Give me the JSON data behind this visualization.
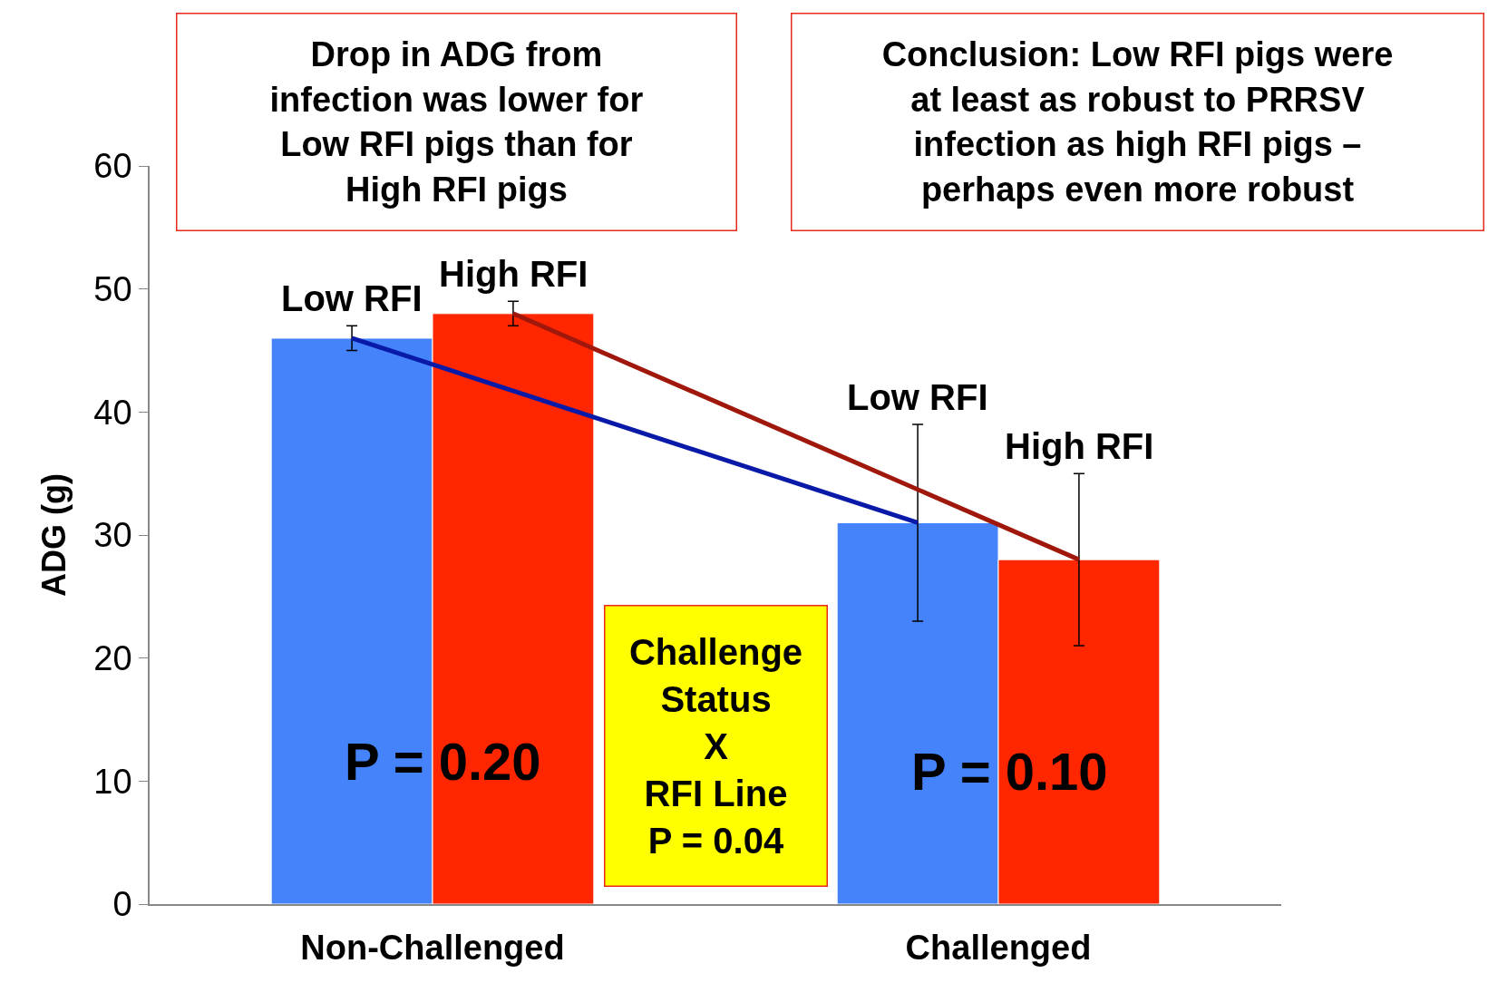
{
  "chart_data": {
    "type": "bar",
    "ylabel": "ADG (g)",
    "categories": [
      "Non-Challenged",
      "Challenged"
    ],
    "series": [
      {
        "name": "Low RFI",
        "color": "#4583fb",
        "values": [
          46,
          31
        ],
        "errors": [
          1,
          8
        ]
      },
      {
        "name": "High RFI",
        "color": "#ff2600",
        "values": [
          48,
          28
        ],
        "errors": [
          1,
          7
        ]
      },
      {
        "type": "line",
        "color": "#0a1aa8",
        "values": [
          46,
          31
        ]
      },
      {
        "type": "line",
        "color": "#a0170c",
        "values": [
          48,
          28
        ]
      }
    ],
    "ylim": [
      0,
      60
    ],
    "yticks": [
      0,
      10,
      20,
      30,
      40,
      50,
      60
    ],
    "grid": false,
    "legend": false,
    "annotations": [
      "Drop in ADG from\ninfection was lower for\nLow RFI pigs than for\nHigh RFI pigs",
      "Conclusion: Low RFI pigs were\nat least as robust to PRRSV\ninfection as high RFI pigs –\nperhaps even more robust",
      "Challenge\nStatus\nX\nRFI Line\nP = 0.04",
      "P = 0.20",
      "P = 0.10"
    ]
  }
}
